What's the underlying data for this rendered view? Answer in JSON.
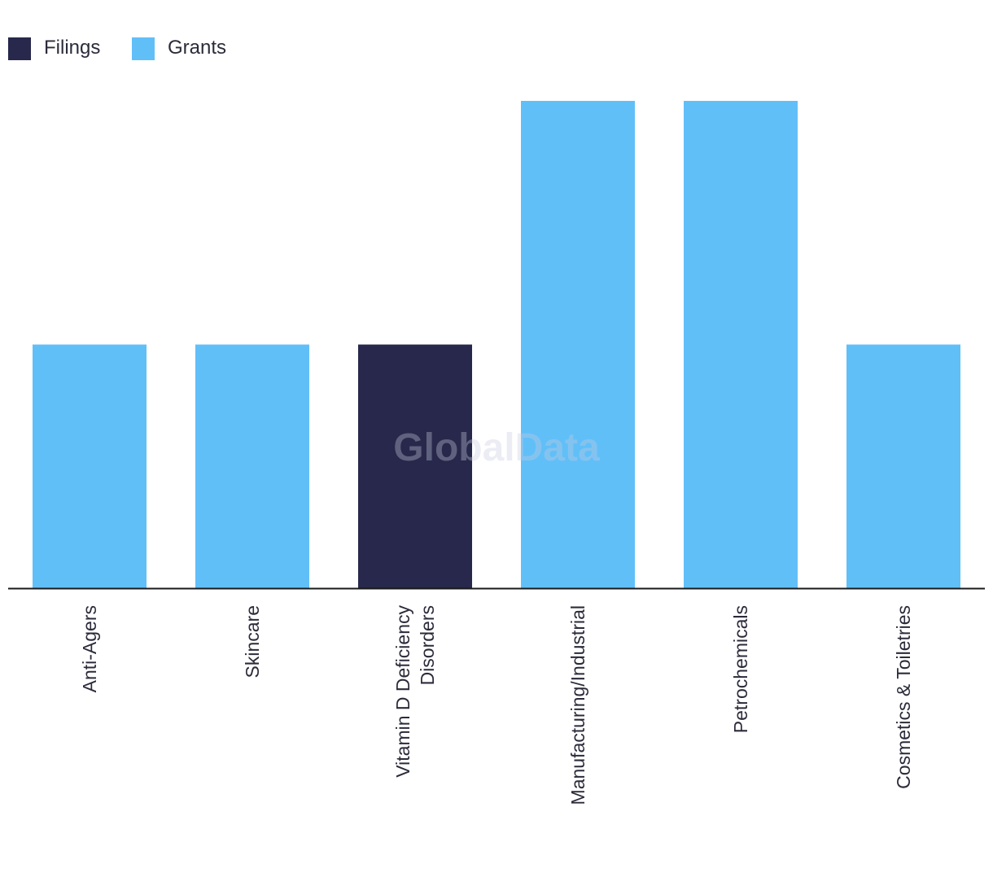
{
  "chart_data": {
    "type": "bar",
    "title": "",
    "xlabel": "",
    "ylabel": "",
    "ylim": [
      0,
      2
    ],
    "grid": false,
    "legend_position": "top-left",
    "watermark": "GlobalData",
    "legend": [
      {
        "name": "Filings",
        "color": "#27284b"
      },
      {
        "name": "Grants",
        "color": "#61bff8"
      }
    ],
    "categories": [
      "Anti-Agers",
      "Skincare",
      "Vitamin D Deficiency Disorders",
      "Manufacturing/Industrial",
      "Petrochemicals",
      "Cosmetics & Toiletries"
    ],
    "category_lines": [
      [
        "Anti-Agers"
      ],
      [
        "Skincare"
      ],
      [
        "Vitamin D Deficiency",
        "Disorders"
      ],
      [
        "Manufacturing/Industrial"
      ],
      [
        "Petrochemicals"
      ],
      [
        "Cosmetics & Toiletries"
      ]
    ],
    "bar_series": [
      "Grants",
      "Grants",
      "Filings",
      "Grants",
      "Grants",
      "Grants"
    ],
    "values": [
      1,
      1,
      1,
      2,
      2,
      1
    ]
  }
}
